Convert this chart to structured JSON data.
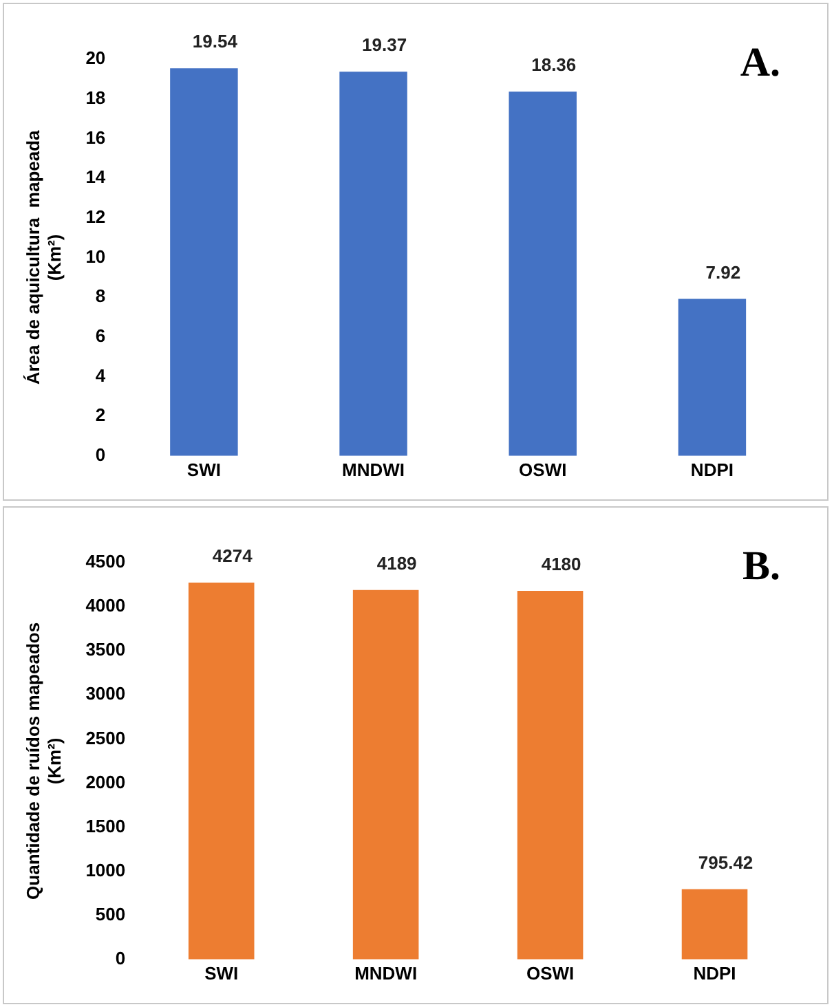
{
  "chart_data": [
    {
      "type": "bar",
      "title": "A.",
      "ylabel": "Área de aquicultura  mapeada (Km²)",
      "categories": [
        "SWI",
        "MNDWI",
        "OSWI",
        "NDPI"
      ],
      "values": [
        19.54,
        19.37,
        18.36,
        7.92
      ],
      "color": "#4472c4",
      "ylim": [
        0,
        20
      ],
      "yticks": [
        0,
        2,
        4,
        6,
        8,
        10,
        12,
        14,
        16,
        18,
        20
      ],
      "grid": false,
      "legend": false,
      "data_labels": true
    },
    {
      "type": "bar",
      "title": "B.",
      "ylabel": "Quantidade de ruídos mapeados (Km²)",
      "categories": [
        "SWI",
        "MNDWI",
        "OSWI",
        "NDPI"
      ],
      "values": [
        4274,
        4189,
        4180,
        795.42
      ],
      "color": "#ed7d31",
      "ylim": [
        0,
        4500
      ],
      "yticks": [
        0,
        500,
        1000,
        1500,
        2000,
        2500,
        3000,
        3500,
        4000,
        4500
      ],
      "grid": false,
      "legend": false,
      "data_labels": true
    }
  ]
}
